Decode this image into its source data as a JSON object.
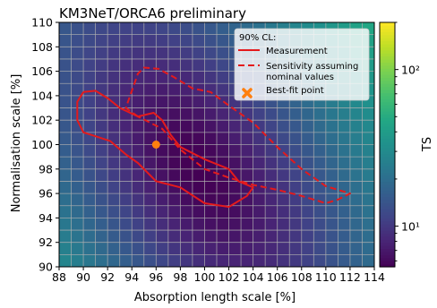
{
  "chart_data": {
    "type": "heatmap",
    "title": "KM3NeT/ORCA6 preliminary",
    "xlabel": "Absorption length scale [%]",
    "ylabel": "Normalisation scale [%]",
    "xlim": [
      88,
      114
    ],
    "ylim": [
      90,
      110
    ],
    "xticks": [
      "88",
      "90",
      "92",
      "94",
      "96",
      "98",
      "100",
      "102",
      "104",
      "106",
      "108",
      "110",
      "112",
      "114"
    ],
    "yticks": [
      "90",
      "92",
      "94",
      "96",
      "98",
      "100",
      "102",
      "104",
      "106",
      "108",
      "110"
    ],
    "grid": true,
    "grid_step": 1,
    "colorbar": {
      "label": "TS",
      "scale": "log",
      "range": [
        5.5,
        200
      ],
      "tick_labels": [
        {
          "value": 10,
          "label": "10¹"
        },
        {
          "value": 100,
          "label": "10²"
        }
      ],
      "colormap": "viridis"
    },
    "ts_surface": {
      "minimum": [
        99.5,
        98.0
      ],
      "min_value": 5.5,
      "scale_x": 3.2,
      "scale_y": 4.0,
      "rho": 0.55
    },
    "legend": {
      "title": "90% CL:",
      "placement": "top-right",
      "entries": [
        {
          "label": "Measurement",
          "style": "solid",
          "color": "#e41a1c"
        },
        {
          "label": "Sensitivity assuming\nnominal values",
          "style": "dashed",
          "color": "#e41a1c"
        },
        {
          "label": "Best-fit point",
          "style": "marker",
          "color": "#ff7f0e"
        }
      ]
    },
    "series": [
      {
        "style": "solid",
        "color": "#e41a1c",
        "points": [
          [
            90.0,
            104.3
          ],
          [
            89.5,
            103.5
          ],
          [
            89.5,
            102.0
          ],
          [
            90.0,
            101.0
          ],
          [
            92.2,
            100.3
          ],
          [
            93.5,
            99.2
          ],
          [
            94.5,
            98.5
          ],
          [
            96.0,
            97.0
          ],
          [
            98.0,
            96.5
          ],
          [
            100.0,
            95.2
          ],
          [
            102.0,
            94.9
          ],
          [
            103.5,
            95.8
          ],
          [
            104.0,
            96.5
          ],
          [
            102.8,
            97.0
          ],
          [
            102.0,
            98.0
          ],
          [
            100.0,
            98.8
          ],
          [
            98.0,
            99.8
          ],
          [
            97.2,
            100.8
          ],
          [
            96.5,
            102.0
          ],
          [
            95.8,
            102.6
          ],
          [
            94.5,
            102.3
          ],
          [
            93.0,
            103.0
          ],
          [
            92.0,
            103.8
          ],
          [
            91.0,
            104.4
          ],
          [
            90.0,
            104.3
          ]
        ]
      },
      {
        "style": "dashed",
        "color": "#e41a1c",
        "points": [
          [
            94.5,
            102.3
          ],
          [
            93.5,
            103.0
          ],
          [
            94.5,
            105.8
          ],
          [
            95.0,
            106.3
          ],
          [
            96.2,
            106.2
          ],
          [
            97.5,
            105.5
          ],
          [
            99.0,
            104.6
          ],
          [
            100.5,
            104.3
          ],
          [
            102.0,
            103.2
          ],
          [
            104.0,
            101.8
          ],
          [
            106.0,
            99.8
          ],
          [
            108.0,
            98.0
          ],
          [
            110.0,
            96.6
          ],
          [
            112.0,
            96.0
          ],
          [
            111.0,
            95.5
          ],
          [
            110.0,
            95.2
          ],
          [
            108.0,
            95.8
          ],
          [
            106.0,
            96.3
          ],
          [
            104.0,
            96.7
          ],
          [
            102.0,
            97.3
          ],
          [
            100.0,
            98.0
          ],
          [
            98.0,
            99.6
          ],
          [
            96.5,
            101.3
          ],
          [
            95.5,
            101.8
          ],
          [
            94.5,
            102.3
          ]
        ]
      },
      {
        "style": "marker",
        "color": "#ff7f0e",
        "name": "Best-fit point",
        "points": [
          [
            96.0,
            100.0
          ]
        ]
      }
    ]
  }
}
